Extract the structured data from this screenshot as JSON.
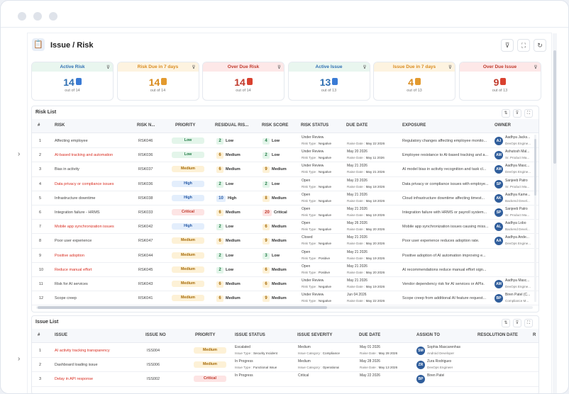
{
  "page": {
    "title": "Issue / Risk"
  },
  "header_buttons": [
    {
      "icon": "filter-icon"
    },
    {
      "icon": "fullscreen-icon"
    },
    {
      "icon": "refresh-icon"
    }
  ],
  "cards": [
    {
      "title": "Active Risk",
      "value": "14",
      "sub": "out of 14",
      "head_bg": "#e9f6ef",
      "color": "#2f6fb2",
      "icon_color": "#3a7bd5"
    },
    {
      "title": "Risk Due in 7 days",
      "value": "14",
      "sub": "out of 14",
      "head_bg": "#fdf3e0",
      "color": "#d98b1e",
      "icon_color": "#e39a2e"
    },
    {
      "title": "Over Due Risk",
      "value": "14",
      "sub": "out of 14",
      "head_bg": "#fde8e8",
      "color": "#c0392b",
      "icon_color": "#d9412f"
    },
    {
      "title": "Active Issue",
      "value": "13",
      "sub": "out of 13",
      "head_bg": "#e9f6ef",
      "color": "#2f6fb2",
      "icon_color": "#3a7bd5"
    },
    {
      "title": "Issue Due in 7 days",
      "value": "4",
      "sub": "out of 13",
      "head_bg": "#fdf3e0",
      "color": "#d98b1e",
      "icon_color": "#e39a2e"
    },
    {
      "title": "Over Due Issue",
      "value": "9",
      "sub": "out of 13",
      "head_bg": "#fde8e8",
      "color": "#c0392b",
      "icon_color": "#d9412f"
    }
  ],
  "risk_list": {
    "title": "Risk List",
    "columns": [
      "#",
      "RISK",
      "RISK N...",
      "PRIORITY",
      "RESIDUAL RIS...",
      "RISK SCORE",
      "RISK STATUS",
      "DUE DATE",
      "EXPOSURE",
      "OWNER"
    ],
    "rows": [
      {
        "num": "1",
        "risk": "Affecting employee",
        "red": false,
        "no": "RSK046",
        "priority": "Low",
        "residual": "2",
        "residual_lbl": "Low",
        "score": "4",
        "score_lbl": "Low",
        "status": "Under Review",
        "risk_type": "Negative",
        "due": "",
        "raise": "May 22 2026",
        "exposure": "Regulatory changes affecting employee monito...",
        "initials": "AJ",
        "owner": "Aadhya Jacks...",
        "role": "DevOps Engine..."
      },
      {
        "num": "2",
        "risk": "AI-based tracking and automation",
        "red": true,
        "no": "RSK036",
        "priority": "Low",
        "residual": "6",
        "residual_lbl": "Medium",
        "score": "2",
        "score_lbl": "Low",
        "status": "Under Review",
        "risk_type": "Negative",
        "due": "May 20 2026",
        "raise": "May 11 2026",
        "exposure": "Employee resistance to AI-based tracking and a...",
        "initials": "AM",
        "owner": "Ashutosh Mal...",
        "role": "Sr. Product Ma..."
      },
      {
        "num": "3",
        "risk": "Bias in activity",
        "red": false,
        "no": "RSK037",
        "priority": "Medium",
        "residual": "6",
        "residual_lbl": "Medium",
        "score": "9",
        "score_lbl": "Medium",
        "status": "Under Review",
        "risk_type": "Negative",
        "due": "May 21 2026",
        "raise": "May 21 2026",
        "exposure": "AI model bias in activity recognition and task cl...",
        "initials": "AM",
        "owner": "Aadhya Masc...",
        "role": "DevOps Engine..."
      },
      {
        "num": "4",
        "risk": "Data privacy or compliance issues",
        "red": true,
        "no": "RSK036",
        "priority": "High",
        "residual": "2",
        "residual_lbl": "Low",
        "score": "2",
        "score_lbl": "Low",
        "status": "Open",
        "risk_type": "Negative",
        "due": "May 23 2026",
        "raise": "May 18 2026",
        "exposure": "Data privacy or compliance issues with employe...",
        "initials": "SP",
        "owner": "Sanjeeb Patro",
        "role": "Sr. Product Ma..."
      },
      {
        "num": "5",
        "risk": "Infrastructure downtime",
        "red": false,
        "no": "RSK038",
        "priority": "High",
        "residual": "10",
        "residual_lbl": "High",
        "score": "8",
        "score_lbl": "Medium",
        "status": "Open",
        "risk_type": "Negative",
        "due": "May 21 2026",
        "raise": "May 18 2026",
        "exposure": "Cloud infrastructure downtime affecting timest...",
        "initials": "AK",
        "owner": "Aadhya Kame...",
        "role": "Backend Devel..."
      },
      {
        "num": "6",
        "risk": "Integration failure - HRMS",
        "red": false,
        "no": "RSK033",
        "priority": "Critical",
        "residual": "6",
        "residual_lbl": "Medium",
        "score": "20",
        "score_lbl": "Critical",
        "status": "Open",
        "risk_type": "Negative",
        "due": "May 21 2026",
        "raise": "May 19 2026",
        "exposure": "Integration failure with HRMS or payroll system...",
        "initials": "SP",
        "owner": "Sanjeeb Patro",
        "role": "Sr. Product Ma..."
      },
      {
        "num": "7",
        "risk": "Mobile app synchronization issues",
        "red": true,
        "no": "RSK042",
        "priority": "High",
        "residual": "2",
        "residual_lbl": "Low",
        "score": "6",
        "score_lbl": "Medium",
        "status": "Open",
        "risk_type": "Negative",
        "due": "May 26 2026",
        "raise": "May 20 2026",
        "exposure": "Mobile app synchronization issues causing miss...",
        "initials": "AL",
        "owner": "Aadhya Lobo",
        "role": "Backend Devel..."
      },
      {
        "num": "8",
        "risk": "Poor user experience",
        "red": false,
        "no": "RSK047",
        "priority": "Medium",
        "residual": "6",
        "residual_lbl": "Medium",
        "score": "9",
        "score_lbl": "Medium",
        "status": "Closed",
        "risk_type": "Negative",
        "due": "May 21 2026",
        "raise": "May 20 2026",
        "exposure": "Poor user experience reduces adoption rate.",
        "initials": "AA",
        "owner": "Aadhya Ande...",
        "role": "DevOps Engine..."
      },
      {
        "num": "9",
        "risk": "Positive adoption",
        "red": true,
        "no": "RSK044",
        "priority": "Medium",
        "residual": "2",
        "residual_lbl": "Low",
        "score": "3",
        "score_lbl": "Low",
        "status": "Open",
        "risk_type": "Positive",
        "due": "May 21 2026",
        "raise": "May 19 2026",
        "exposure": "Positive adoption of AI automation improving e...",
        "initials": "",
        "owner": "",
        "role": ""
      },
      {
        "num": "10",
        "risk": "Reduce manual effort",
        "red": true,
        "no": "RSK045",
        "priority": "Medium",
        "residual": "2",
        "residual_lbl": "Low",
        "score": "6",
        "score_lbl": "Medium",
        "status": "Open",
        "risk_type": "Positive",
        "due": "May 21 2026",
        "raise": "May 20 2026",
        "exposure": "AI recommendations reduce manual effort sign...",
        "initials": "",
        "owner": "",
        "role": ""
      },
      {
        "num": "11",
        "risk": "Risk for AI services",
        "red": false,
        "no": "RSK043",
        "priority": "Medium",
        "residual": "6",
        "residual_lbl": "Medium",
        "score": "6",
        "score_lbl": "Medium",
        "status": "Under Review",
        "risk_type": "Negative",
        "due": "May 21 2026",
        "raise": "May 19 2026",
        "exposure": "Vendor dependency risk for AI services or APIs.",
        "initials": "AM",
        "owner": "Aadhya Masc...",
        "role": "DevOps Engine..."
      },
      {
        "num": "12",
        "risk": "Scope creep",
        "red": false,
        "no": "RSK041",
        "priority": "Medium",
        "residual": "6",
        "residual_lbl": "Medium",
        "score": "9",
        "score_lbl": "Medium",
        "status": "Under Review",
        "risk_type": "Negative",
        "due": "Jun 04 2026",
        "raise": "May 22 2026",
        "exposure": "Scope creep from additional AI feature request...",
        "initials": "BP",
        "owner": "Biren Patel (C...",
        "role": "Compliance M..."
      }
    ]
  },
  "issue_list": {
    "title": "Issue List",
    "columns": [
      "#",
      "ISSUE",
      "ISSUE NO",
      "PRIORITY",
      "ISSUE STATUS",
      "ISSUE SEVERITY",
      "DUE DATE",
      "ASSIGN TO",
      "RESOLUTION DATE",
      "R"
    ],
    "rows": [
      {
        "num": "1",
        "issue": "AI activity tracking transparency",
        "red": true,
        "no": "ISS004",
        "priority": "Medium",
        "status": "Escalated",
        "issue_type": "Security Incident",
        "severity": "Medium",
        "category": "Compliance",
        "due": "May 01 2026",
        "raise": "May 28 2026",
        "initials": "SM",
        "assignee": "Sophia Mascarenhas",
        "role": "Android Developer"
      },
      {
        "num": "2",
        "issue": "Dashboard loading issue",
        "red": false,
        "no": "ISS006",
        "priority": "Medium",
        "status": "In Progress",
        "issue_type": "Functional Issue",
        "severity": "Medium",
        "category": "Operational",
        "due": "May 28 2026",
        "raise": "May 13 2026",
        "initials": "ZR",
        "assignee": "Zura Rodrigues",
        "role": "DevOps Engineer"
      },
      {
        "num": "3",
        "issue": "Delay in API response",
        "red": true,
        "no": "ISS002",
        "priority": "Critical",
        "status": "In Progress",
        "issue_type": "",
        "severity": "Critical",
        "category": "",
        "due": "May 22 2026",
        "raise": "",
        "initials": "BP",
        "assignee": "Biren Patel",
        "role": ""
      }
    ]
  },
  "colors": {
    "low": {
      "bg": "#e3f5ea",
      "fg": "#1f7a43"
    },
    "medium": {
      "bg": "#fdf1d6",
      "fg": "#a66a06"
    },
    "high": {
      "bg": "#e3eefc",
      "fg": "#2559a6"
    },
    "critical": {
      "bg": "#fde4e4",
      "fg": "#c0392b"
    },
    "red_text": "#d92d20"
  }
}
